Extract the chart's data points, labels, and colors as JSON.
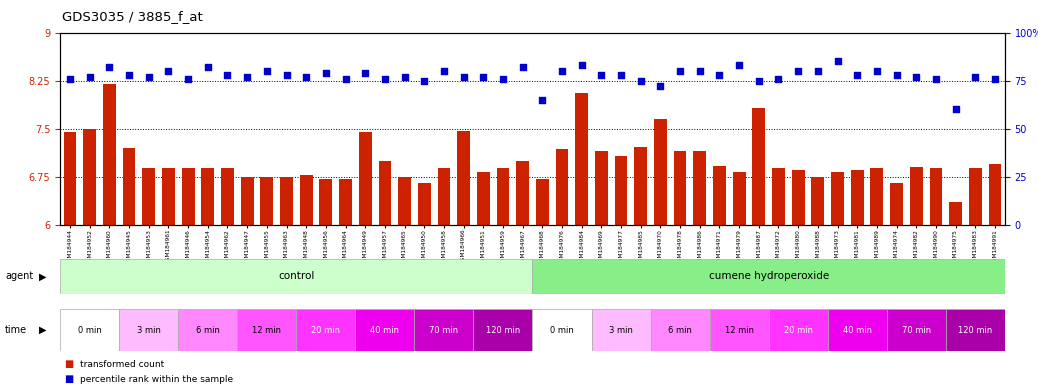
{
  "title": "GDS3035 / 3885_f_at",
  "bar_color": "#cc2200",
  "dot_color": "#0000cc",
  "ylim_left": [
    6,
    9
  ],
  "ylim_right": [
    0,
    100
  ],
  "yticks_left": [
    6,
    6.75,
    7.5,
    8.25,
    9
  ],
  "yticks_right": [
    0,
    25,
    50,
    75,
    100
  ],
  "gsm_labels": [
    "GSM184944",
    "GSM184952",
    "GSM184960",
    "GSM184945",
    "GSM184953",
    "GSM184961",
    "GSM184946",
    "GSM184954",
    "GSM184962",
    "GSM184947",
    "GSM184955",
    "GSM184963",
    "GSM184948",
    "GSM184956",
    "GSM184964",
    "GSM184949",
    "GSM184957",
    "GSM184965",
    "GSM184950",
    "GSM184958",
    "GSM184966",
    "GSM184951",
    "GSM184959",
    "GSM184967",
    "GSM184968",
    "GSM184976",
    "GSM184984",
    "GSM184969",
    "GSM184977",
    "GSM184985",
    "GSM184970",
    "GSM184978",
    "GSM184986",
    "GSM184971",
    "GSM184979",
    "GSM184987",
    "GSM184972",
    "GSM184980",
    "GSM184988",
    "GSM184973",
    "GSM184981",
    "GSM184989",
    "GSM184974",
    "GSM184982",
    "GSM184990",
    "GSM184975",
    "GSM184983",
    "GSM184991"
  ],
  "bar_values": [
    7.45,
    7.5,
    8.2,
    7.2,
    6.88,
    6.88,
    6.88,
    6.88,
    6.88,
    6.75,
    6.75,
    6.75,
    6.78,
    6.72,
    6.72,
    7.45,
    7.0,
    6.75,
    6.65,
    6.88,
    7.47,
    6.82,
    6.88,
    7.0,
    6.72,
    7.18,
    8.05,
    7.15,
    7.08,
    7.22,
    7.65,
    7.15,
    7.15,
    6.92,
    6.82,
    7.82,
    6.88,
    6.85,
    6.75,
    6.82,
    6.85,
    6.88,
    6.65,
    6.9,
    6.88,
    6.35,
    6.88,
    6.95
  ],
  "dot_values": [
    76,
    77,
    82,
    78,
    77,
    80,
    76,
    82,
    78,
    77,
    80,
    78,
    77,
    79,
    76,
    79,
    76,
    77,
    75,
    80,
    77,
    77,
    76,
    82,
    65,
    80,
    83,
    78,
    78,
    75,
    72,
    80,
    80,
    78,
    83,
    75,
    76,
    80,
    80,
    85,
    78,
    80,
    78,
    77,
    76,
    60,
    77,
    76
  ],
  "control_bg": "#ccffcc",
  "cumene_bg": "#88ee88",
  "pink_shades": [
    "#ffffff",
    "#ffbbff",
    "#ff88ff",
    "#ff55ff",
    "#ff33ff",
    "#ee00ee",
    "#cc00cc",
    "#aa00aa"
  ],
  "time_labels": [
    "0 min",
    "3 min",
    "6 min",
    "12 min",
    "20 min",
    "40 min",
    "70 min",
    "120 min"
  ],
  "background_color": "#ffffff"
}
